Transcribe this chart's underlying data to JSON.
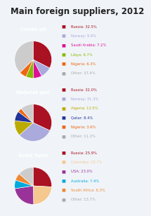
{
  "title": "Main foreign suppliers, 2012",
  "title_fontsize": 8.5,
  "bg_color": "#f0f4f8",
  "charts": [
    {
      "label": "Crude oil",
      "label_bg": "#cc2222",
      "label_color": "#ffffff",
      "slices": [
        32.5,
        9.9,
        7.2,
        6.7,
        6.3,
        37.4
      ],
      "colors": [
        "#aa1122",
        "#aaaadd",
        "#dd1199",
        "#88bb00",
        "#ee6611",
        "#cccccc"
      ],
      "legend": [
        "Russia: 32.5%",
        "Norway: 9.9%",
        "Saudi Arabia: 7.2%",
        "Libya: 6.7%",
        "Nigeria: 6.3%",
        "Other: 37.4%"
      ],
      "legend_colors": [
        "#aa1122",
        "#aaaadd",
        "#dd1199",
        "#88bb00",
        "#ee6611",
        "#aaaaaa"
      ]
    },
    {
      "label": "Natural gas",
      "label_bg": "#aa44cc",
      "label_color": "#ffffff",
      "slices": [
        32.0,
        31.3,
        13.5,
        8.4,
        3.6,
        11.2
      ],
      "colors": [
        "#aa1122",
        "#aaaadd",
        "#bbaa00",
        "#223399",
        "#ee6611",
        "#cccccc"
      ],
      "legend": [
        "Russia: 32.0%",
        "Norway: 31.3%",
        "Algeria: 13.5%",
        "Qatar: 8.4%",
        "Nigeria: 3.6%",
        "Other: 11.2%"
      ],
      "legend_colors": [
        "#aa1122",
        "#aaaadd",
        "#bbaa00",
        "#223399",
        "#ee6611",
        "#aaaaaa"
      ]
    },
    {
      "label": "Solid fuels",
      "label_bg": "#8899cc",
      "label_color": "#ffffff",
      "slices": [
        25.9,
        23.7,
        23.0,
        7.4,
        6.3,
        13.7
      ],
      "colors": [
        "#aa1122",
        "#f5c890",
        "#993399",
        "#00aadd",
        "#ee8833",
        "#cccccc"
      ],
      "legend": [
        "Russia: 25.9%",
        "Colombia: 23.7%",
        "USA: 23.0%",
        "Australia: 7.4%",
        "South Africa: 6.3%",
        "Other: 13.7%"
      ],
      "legend_colors": [
        "#aa1122",
        "#f5c890",
        "#993399",
        "#00aadd",
        "#ee8833",
        "#aaaaaa"
      ]
    }
  ],
  "startangle": 90,
  "pie_counterclock": false
}
